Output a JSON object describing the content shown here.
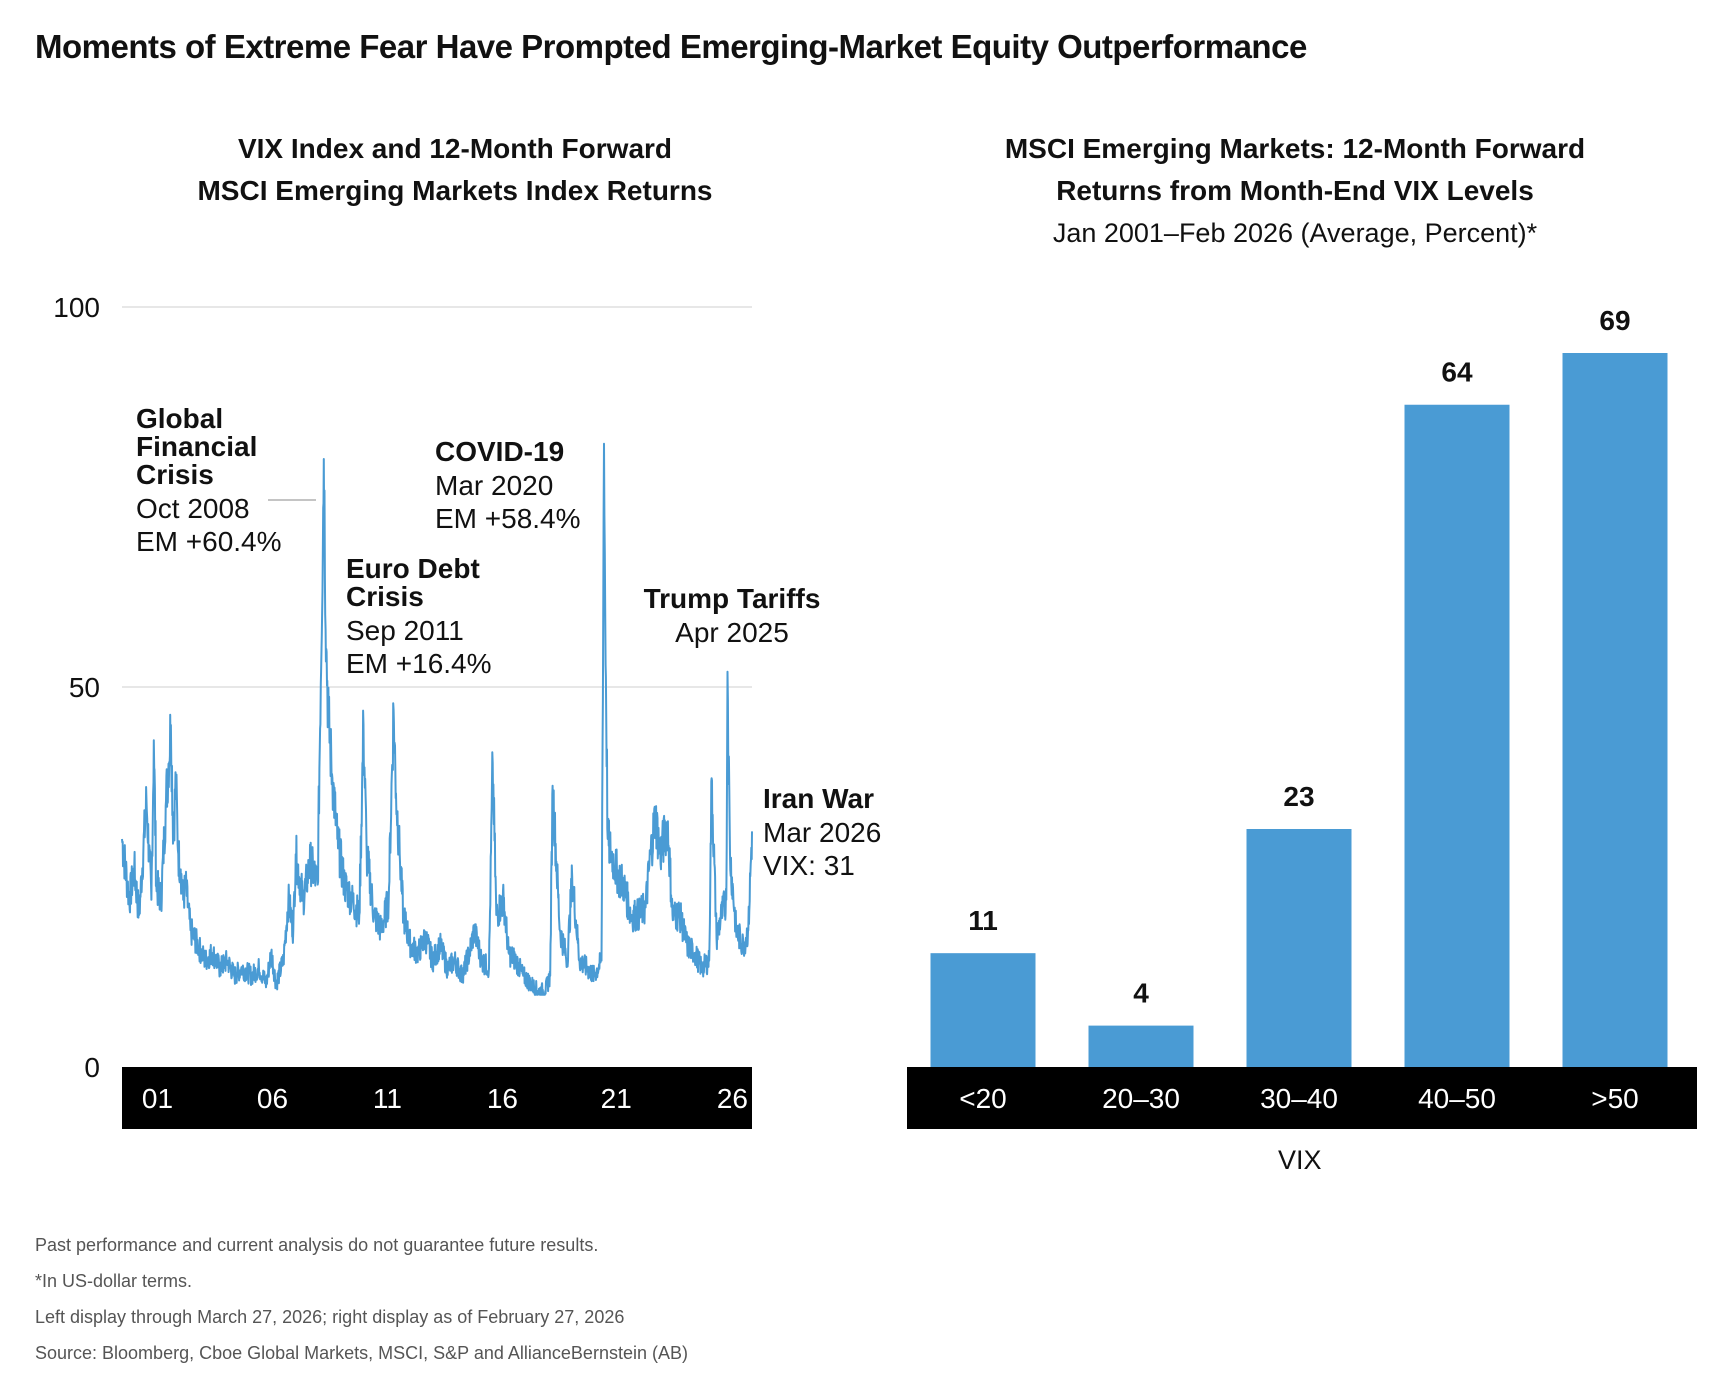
{
  "title": "Moments of Extreme Fear Have Prompted Emerging-Market Equity Outperformance",
  "left_panel": {
    "title_line1": "VIX Index and 12-Month Forward",
    "title_line2": "MSCI Emerging Markets Index Returns"
  },
  "right_panel": {
    "title_line1": "MSCI Emerging Markets: 12-Month Forward",
    "title_line2": "Returns from Month-End VIX Levels",
    "subtitle": "Jan 2001–Feb 2026 (Average, Percent)*",
    "xlabel": "VIX"
  },
  "footnotes": [
    "Past performance and current analysis do not guarantee future results.",
    "*In US-dollar terms.",
    "Left display through March 27, 2026; right display as of February 27, 2026",
    "Source: Bloomberg, Cboe Global Markets, MSCI, S&P and AllianceBernstein (AB)"
  ],
  "chart_data": [
    {
      "type": "line",
      "title": "VIX Index and 12-Month Forward MSCI Emerging Markets Index Returns",
      "color": "#4a9bd4",
      "ylim": [
        0,
        100
      ],
      "yticks": [
        0,
        50,
        100
      ],
      "xlim": [
        2000.5,
        2026.25
      ],
      "xticks": [
        {
          "x": 2001.95,
          "label": "01"
        },
        {
          "x": 2006.65,
          "label": "06"
        },
        {
          "x": 2011.35,
          "label": "11"
        },
        {
          "x": 2016.05,
          "label": "16"
        },
        {
          "x": 2020.7,
          "label": "21"
        },
        {
          "x": 2025.45,
          "label": "26"
        }
      ],
      "grid": true,
      "series": [
        {
          "x": [
            2000.5,
            2000.8,
            2001.0,
            2001.2,
            2001.5,
            2001.7,
            2001.8,
            2001.9,
            2002.1,
            2002.3,
            2002.5,
            2002.6,
            2002.7,
            2002.8,
            2002.9,
            2003.0,
            2003.1,
            2003.3,
            2003.6,
            2003.9,
            2004.2,
            2004.5,
            2004.8,
            2005.1,
            2005.4,
            2005.8,
            2006.1,
            2006.4,
            2006.6,
            2006.8,
            2007.1,
            2007.3,
            2007.5,
            2007.6,
            2007.9,
            2008.2,
            2008.5,
            2008.75,
            2008.85,
            2008.95,
            2009.1,
            2009.3,
            2009.6,
            2009.9,
            2010.2,
            2010.37,
            2010.5,
            2010.8,
            2011.1,
            2011.4,
            2011.6,
            2011.7,
            2011.85,
            2012.0,
            2012.3,
            2012.6,
            2012.9,
            2013.2,
            2013.5,
            2013.8,
            2014.1,
            2014.4,
            2014.7,
            2014.9,
            2015.2,
            2015.5,
            2015.65,
            2015.8,
            2016.1,
            2016.3,
            2016.6,
            2016.9,
            2017.2,
            2017.5,
            2017.8,
            2018.0,
            2018.1,
            2018.4,
            2018.7,
            2018.9,
            2019.2,
            2019.5,
            2019.8,
            2020.1,
            2020.2,
            2020.25,
            2020.35,
            2020.5,
            2020.8,
            2021.0,
            2021.3,
            2021.6,
            2021.9,
            2022.1,
            2022.3,
            2022.5,
            2022.8,
            2023.0,
            2023.3,
            2023.6,
            2023.9,
            2024.2,
            2024.5,
            2024.6,
            2024.8,
            2025.0,
            2025.2,
            2025.25,
            2025.35,
            2025.6,
            2025.9,
            2026.1,
            2026.25
          ],
          "y": [
            30,
            22,
            26,
            20,
            35,
            22,
            43,
            24,
            22,
            35,
            45,
            30,
            38,
            28,
            26,
            22,
            24,
            18,
            16,
            14,
            15,
            13,
            14,
            12,
            13,
            12,
            13,
            11,
            15,
            11,
            14,
            22,
            18,
            28,
            22,
            27,
            24,
            80,
            55,
            45,
            38,
            30,
            24,
            22,
            20,
            45,
            28,
            20,
            18,
            22,
            47,
            36,
            28,
            20,
            16,
            15,
            17,
            14,
            16,
            13,
            14,
            12,
            15,
            18,
            14,
            13,
            40,
            20,
            22,
            15,
            14,
            12,
            11,
            10,
            10,
            12,
            37,
            18,
            14,
            25,
            14,
            13,
            12,
            14,
            82,
            60,
            30,
            28,
            25,
            24,
            20,
            20,
            21,
            28,
            33,
            28,
            32,
            20,
            20,
            16,
            15,
            13,
            14,
            38,
            17,
            20,
            22,
            52,
            28,
            18,
            16,
            18,
            31
          ]
        }
      ],
      "annotations": [
        {
          "title_lines": [
            "Global",
            "Financial",
            "Crisis"
          ],
          "lines": [
            "Oct 2008",
            "EM +60.4%"
          ]
        },
        {
          "title_lines": [
            "Euro Debt",
            "Crisis"
          ],
          "lines": [
            "Sep 2011",
            "EM +16.4%"
          ]
        },
        {
          "title_lines": [
            "COVID-19"
          ],
          "lines": [
            "Mar 2020",
            "EM +58.4%"
          ]
        },
        {
          "title_lines": [
            "Trump Tariffs"
          ],
          "lines": [
            "Apr 2025"
          ]
        },
        {
          "title_lines": [
            "Iran War"
          ],
          "lines": [
            "Mar 2026",
            "VIX: 31"
          ]
        }
      ]
    },
    {
      "type": "bar",
      "title": "MSCI Emerging Markets: 12-Month Forward Returns from Month-End VIX Levels",
      "categories": [
        "<20",
        "20–30",
        "30–40",
        "40–50",
        ">50"
      ],
      "values": [
        11,
        4,
        23,
        64,
        69
      ],
      "xlabel": "VIX",
      "ylim": [
        0,
        69
      ],
      "color": "#4a9bd4"
    }
  ]
}
